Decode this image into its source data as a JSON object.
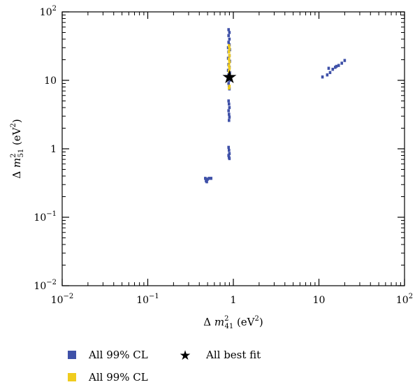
{
  "chart_data": {
    "type": "scatter",
    "title": "",
    "xlabel": "Δ m²₄₁ (eV²)",
    "ylabel": "Δ m²₅₁ (eV²)",
    "xscale": "log",
    "yscale": "log",
    "xlim": [
      0.01,
      100
    ],
    "ylim": [
      0.01,
      100
    ],
    "xticks": [
      {
        "value": 0.01,
        "base": "10",
        "exp": "−2"
      },
      {
        "value": 0.1,
        "base": "10",
        "exp": "−1"
      },
      {
        "value": 1,
        "base": "1",
        "exp": ""
      },
      {
        "value": 10,
        "base": "10",
        "exp": ""
      },
      {
        "value": 100,
        "base": "10",
        "exp": "2"
      }
    ],
    "yticks": [
      {
        "value": 0.01,
        "base": "10",
        "exp": "−2"
      },
      {
        "value": 0.1,
        "base": "10",
        "exp": "−1"
      },
      {
        "value": 1,
        "base": "1",
        "exp": ""
      },
      {
        "value": 10,
        "base": "10",
        "exp": ""
      },
      {
        "value": 100,
        "base": "10",
        "exp": "2"
      }
    ],
    "grid": false,
    "legend_position": "bottom",
    "series": [
      {
        "name": "All 99% CL",
        "color": "#3f51a8",
        "marker": "square",
        "points": [
          [
            0.88,
            55
          ],
          [
            0.9,
            50
          ],
          [
            0.88,
            45
          ],
          [
            0.9,
            40
          ],
          [
            0.88,
            36
          ],
          [
            0.9,
            33
          ],
          [
            0.87,
            30
          ],
          [
            0.91,
            28
          ],
          [
            0.88,
            26
          ],
          [
            0.9,
            23
          ],
          [
            0.87,
            21
          ],
          [
            0.91,
            19
          ],
          [
            0.88,
            17
          ],
          [
            0.9,
            15.5
          ],
          [
            0.87,
            14
          ],
          [
            0.91,
            13
          ],
          [
            0.88,
            12
          ],
          [
            0.9,
            10
          ],
          [
            0.88,
            9
          ],
          [
            0.89,
            8
          ],
          [
            0.9,
            7.5
          ],
          [
            0.88,
            5.0
          ],
          [
            0.89,
            4.5
          ],
          [
            0.9,
            4.0
          ],
          [
            0.88,
            3.6
          ],
          [
            0.89,
            3.2
          ],
          [
            0.9,
            2.9
          ],
          [
            0.89,
            2.6
          ],
          [
            0.88,
            1.05
          ],
          [
            0.89,
            0.95
          ],
          [
            0.9,
            0.85
          ],
          [
            0.88,
            0.8
          ],
          [
            0.89,
            0.75
          ],
          [
            0.9,
            0.72
          ],
          [
            0.47,
            0.37
          ],
          [
            0.5,
            0.36
          ],
          [
            0.48,
            0.34
          ],
          [
            0.52,
            0.37
          ],
          [
            0.49,
            0.33
          ],
          [
            0.55,
            0.37
          ],
          [
            11,
            11.2
          ],
          [
            12.5,
            12
          ],
          [
            13.5,
            13
          ],
          [
            14.5,
            14.5
          ],
          [
            15.5,
            15.5
          ],
          [
            17,
            16.5
          ],
          [
            18.5,
            17.8
          ],
          [
            20,
            19.5
          ],
          [
            13,
            15
          ],
          [
            16,
            16
          ]
        ]
      },
      {
        "name": "All 99% CL",
        "color": "#f0cc1e",
        "marker": "square",
        "points": [
          [
            0.89,
            32
          ],
          [
            0.9,
            29
          ],
          [
            0.89,
            26
          ],
          [
            0.9,
            23
          ],
          [
            0.89,
            20.5
          ],
          [
            0.9,
            18.5
          ],
          [
            0.89,
            16.5
          ],
          [
            0.9,
            15
          ],
          [
            0.89,
            13.5
          ],
          [
            0.9,
            8.2
          ],
          [
            0.89,
            7.7
          ]
        ]
      },
      {
        "name": "All best fit",
        "color": "#000000",
        "marker": "star",
        "points": [
          [
            0.9,
            11.2
          ]
        ]
      }
    ]
  },
  "legend": {
    "item1": "All 99% CL",
    "item2": "All 99% CL",
    "item3": "All best fit"
  }
}
